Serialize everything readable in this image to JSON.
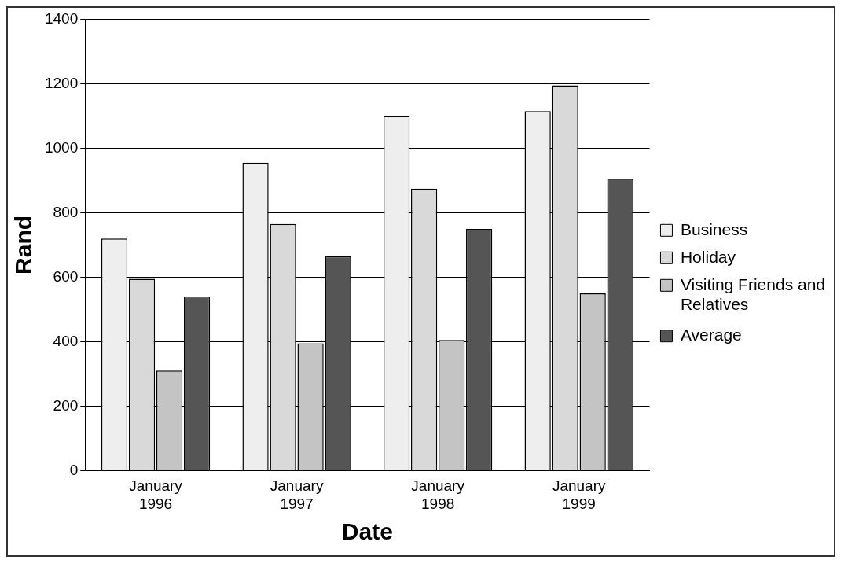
{
  "chart_data": {
    "type": "bar",
    "xlabel": "Date",
    "ylabel": "Rand",
    "categories": [
      "January 1996",
      "January 1997",
      "January 1998",
      "January 1999"
    ],
    "series": [
      {
        "name": "Business",
        "color": "#eeeeee",
        "values": [
          720,
          955,
          1100,
          1115
        ]
      },
      {
        "name": "Holiday",
        "color": "#d9d9d9",
        "values": [
          595,
          765,
          875,
          1195
        ]
      },
      {
        "name": "Visiting Friends and Relatives",
        "color": "#c4c4c4",
        "values": [
          310,
          395,
          405,
          550
        ]
      },
      {
        "name": "Average",
        "color": "#555555",
        "values": [
          540,
          665,
          750,
          905
        ]
      }
    ],
    "ylim": [
      0,
      1400
    ],
    "yticks": [
      0,
      200,
      400,
      600,
      800,
      1000,
      1200,
      1400
    ],
    "grid": "y",
    "legend": "right"
  }
}
